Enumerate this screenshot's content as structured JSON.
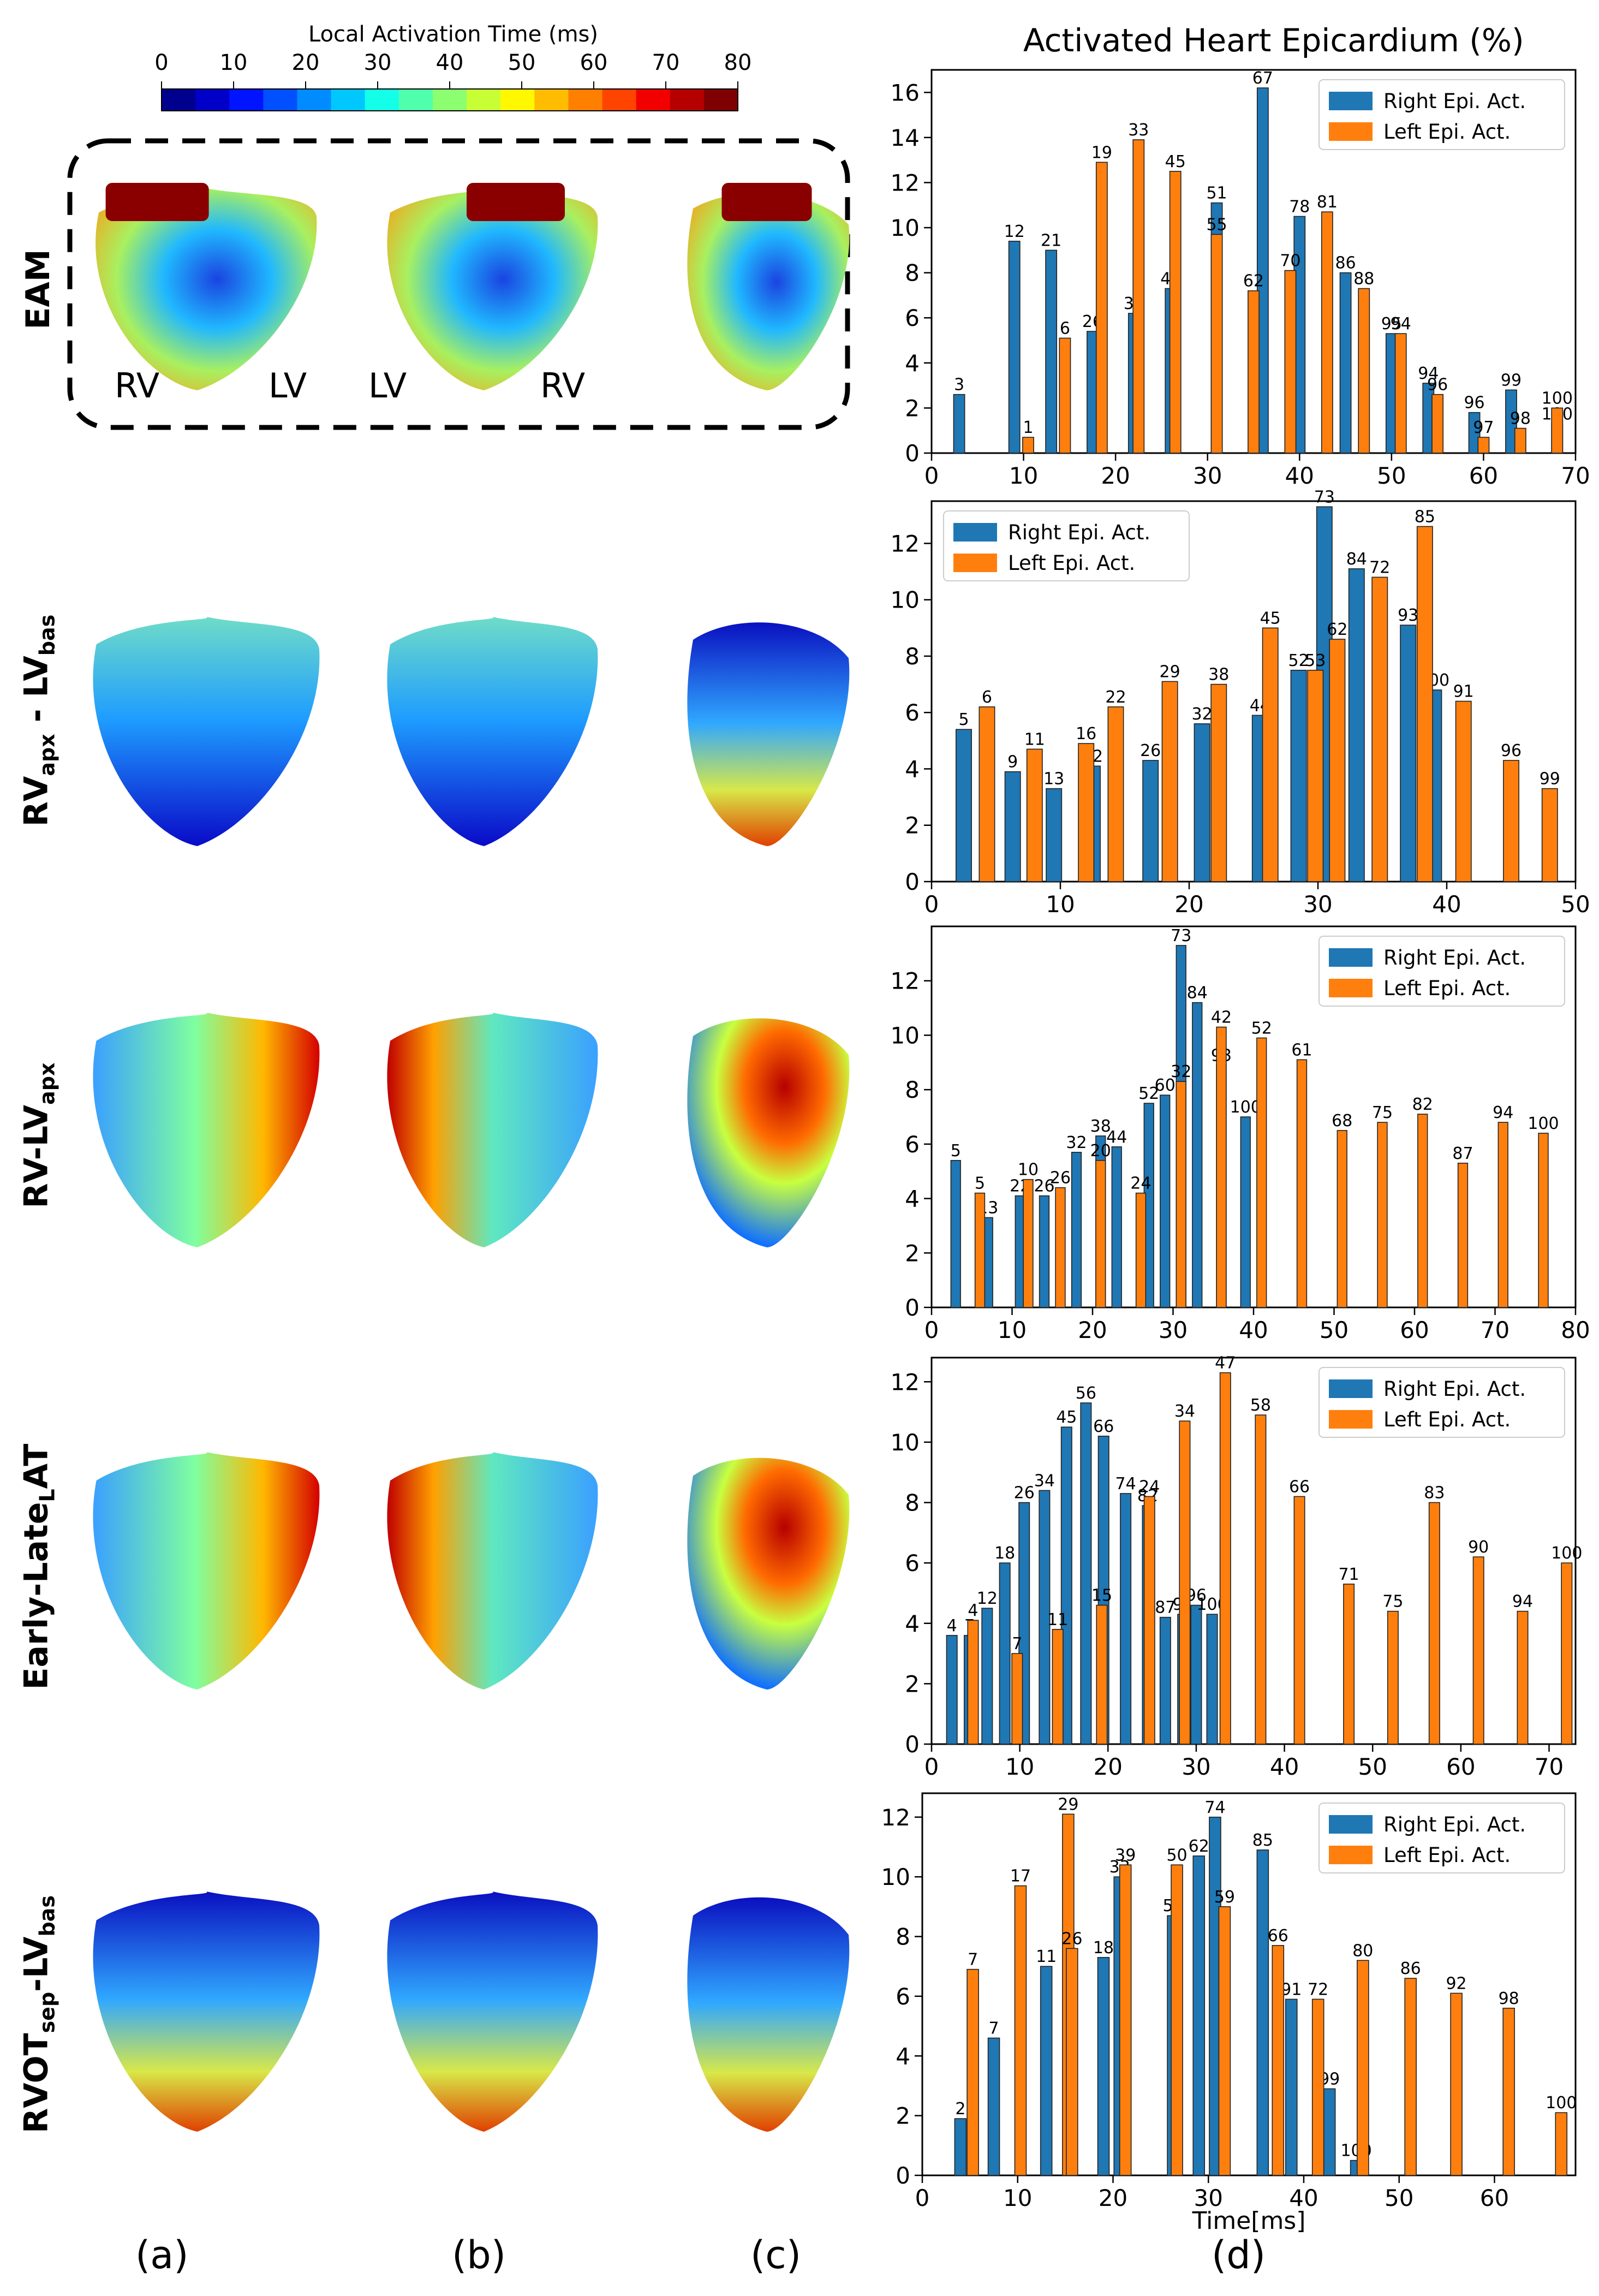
{
  "colorbar": {
    "title": "Local Activation Time (ms)",
    "ticks": [
      "0",
      "10",
      "20",
      "30",
      "40",
      "50",
      "60",
      "70",
      "80"
    ],
    "colors": [
      "#00008f",
      "#0000c8",
      "#0014ff",
      "#0050ff",
      "#008cff",
      "#00c8ff",
      "#14ffe8",
      "#50ffac",
      "#8cff70",
      "#c8ff34",
      "#fff800",
      "#ffbc00",
      "#ff8000",
      "#ff4400",
      "#f20000",
      "#b60000",
      "#7f0000"
    ]
  },
  "chart_header": "Activated Heart Epicardium (%)",
  "row_labels": {
    "r0": {
      "main": "EAM",
      "sub": "",
      "tail": "",
      "sub2": ""
    },
    "r1": {
      "main": "RV",
      "sub": "apx",
      "tail": " - LV",
      "sub2": "bas"
    },
    "r2": {
      "main": "RV-LV",
      "sub": "apx",
      "tail": "",
      "sub2": ""
    },
    "r3": {
      "main": "Early-Late",
      "sub": "L",
      "tail": "AT",
      "sub2": ""
    },
    "r4": {
      "main": "RVOT",
      "sub": "sep",
      "tail": "-LV",
      "sub2": "bas"
    }
  },
  "view_labels": {
    "rv_1": "RV",
    "lv_1": "LV",
    "lv_2": "LV",
    "rv_2": "RV"
  },
  "panel_labels": [
    "(a)",
    "(b)",
    "(c)",
    "(d)"
  ],
  "legend_right": "Right Epi. Act.",
  "legend_left": "Left Epi. Act.",
  "xlabel_last": "Time[ms]",
  "colors": {
    "right": "#1f77b4",
    "left": "#ff7f0e",
    "heart_dark": "#00008f",
    "heart_red": "#b60000"
  },
  "chart_data": [
    {
      "type": "bar",
      "title": "Activated Heart Epicardium (%)",
      "xlabel": "",
      "ylabel": "",
      "xlim": [
        0,
        70
      ],
      "ylim": [
        0,
        17
      ],
      "xticks": [
        0,
        10,
        20,
        30,
        40,
        50,
        60,
        70
      ],
      "yticks": [
        0,
        2,
        4,
        6,
        8,
        10,
        12,
        14,
        16
      ],
      "legend_position": "top-right",
      "series": [
        {
          "name": "Right Epi. Act.",
          "x": [
            3,
            9,
            13,
            17.5,
            22,
            26,
            31,
            36,
            40,
            45,
            50,
            54,
            59,
            63,
            68
          ],
          "values": [
            2.6,
            9.4,
            9,
            5.4,
            6.2,
            7.3,
            11.1,
            16.2,
            10.5,
            8,
            5.3,
            3.1,
            1.8,
            2.8,
            1.3
          ],
          "labels": [
            "3",
            "12",
            "21",
            "26",
            "33",
            "40",
            "51",
            "67",
            "78",
            "86",
            "95",
            "94",
            "96",
            "99",
            "100"
          ]
        },
        {
          "name": "Left Epi. Act.",
          "x": [
            10.5,
            14.5,
            18.5,
            22.5,
            26.5,
            31,
            35,
            39,
            43,
            47,
            51,
            55,
            60,
            64,
            68
          ],
          "values": [
            0.7,
            5.1,
            12.9,
            13.9,
            12.5,
            9.7,
            7.2,
            8.1,
            10.7,
            7.3,
            5.3,
            2.6,
            0.7,
            1.1,
            2
          ],
          "labels": [
            "1",
            "6",
            "19",
            "33",
            "45",
            "55",
            "62",
            "70",
            "81",
            "88",
            "94",
            "96",
            "97",
            "98",
            "100"
          ]
        }
      ]
    },
    {
      "type": "bar",
      "title": "",
      "xlabel": "",
      "ylabel": "",
      "xlim": [
        0,
        50
      ],
      "ylim": [
        0,
        13.5
      ],
      "xticks": [
        0,
        10,
        20,
        30,
        40,
        50
      ],
      "yticks": [
        0,
        2,
        4,
        6,
        8,
        10,
        12
      ],
      "legend_position": "top-left",
      "series": [
        {
          "name": "Right Epi. Act.",
          "x": [
            2.5,
            6.3,
            9.5,
            12.5,
            17,
            21,
            25.5,
            28.5,
            30.5,
            33,
            37,
            39
          ],
          "values": [
            5.4,
            3.9,
            3.3,
            4.1,
            4.3,
            5.6,
            5.9,
            7.5,
            13.3,
            11.1,
            9.1,
            6.8
          ],
          "labels": [
            "5",
            "9",
            "13",
            "22",
            "26",
            "32",
            "44",
            "52",
            "73",
            "84",
            "93",
            "100"
          ]
        },
        {
          "name": "Left Epi. Act.",
          "x": [
            4.3,
            8,
            12,
            14.3,
            18.5,
            22.3,
            26.3,
            29.8,
            31.5,
            34.8,
            38.3,
            41.3,
            45,
            48
          ],
          "values": [
            6.2,
            4.7,
            4.9,
            6.2,
            7.1,
            7,
            9,
            7.5,
            8.6,
            10.8,
            12.6,
            6.4,
            4.3,
            3.3
          ],
          "labels": [
            "6",
            "11",
            "16",
            "22",
            "29",
            "38",
            "45",
            "53",
            "62",
            "72",
            "85",
            "91",
            "96",
            "99"
          ]
        }
      ]
    },
    {
      "type": "bar",
      "title": "",
      "xlabel": "",
      "ylabel": "",
      "xlim": [
        0,
        80
      ],
      "ylim": [
        0,
        14
      ],
      "xticks": [
        0,
        10,
        20,
        30,
        40,
        50,
        60,
        70,
        80
      ],
      "yticks": [
        0,
        2,
        4,
        6,
        8,
        10,
        12
      ],
      "legend_position": "top-right",
      "series": [
        {
          "name": "Right Epi. Act.",
          "x": [
            3,
            7,
            11,
            14,
            18,
            21,
            23,
            27,
            29,
            31,
            33,
            36,
            39
          ],
          "values": [
            5.4,
            3.3,
            4.1,
            4.1,
            5.7,
            6.3,
            5.9,
            7.5,
            7.8,
            13.3,
            11.2,
            8.9,
            7
          ],
          "labels": [
            "5",
            "13",
            "22",
            "26",
            "32",
            "38",
            "44",
            "52",
            "60",
            "73",
            "84",
            "93",
            "100"
          ]
        },
        {
          "name": "Left Epi. Act.",
          "x": [
            6,
            12,
            16,
            21,
            26,
            31,
            36,
            41,
            46,
            51,
            56,
            61,
            66,
            71,
            76
          ],
          "values": [
            4.2,
            4.7,
            4.4,
            5.4,
            4.2,
            8.3,
            10.3,
            9.9,
            9.1,
            6.5,
            6.8,
            7.1,
            5.3,
            6.8,
            6.4
          ],
          "labels": [
            "5",
            "10",
            "26",
            "20",
            "24",
            "32",
            "42",
            "52",
            "61",
            "68",
            "75",
            "82",
            "87",
            "94",
            "100"
          ]
        }
      ]
    },
    {
      "type": "bar",
      "title": "",
      "xlabel": "",
      "ylabel": "",
      "xlim": [
        0,
        73
      ],
      "ylim": [
        0,
        12.8
      ],
      "xticks": [
        0,
        10,
        20,
        30,
        40,
        50,
        60,
        70
      ],
      "yticks": [
        0,
        2,
        4,
        6,
        8,
        10,
        12
      ],
      "legend_position": "top-right",
      "series": [
        {
          "name": "Right Epi. Act.",
          "x": [
            2.3,
            4.3,
            6.3,
            8.3,
            10.5,
            12.8,
            15.3,
            17.5,
            19.5,
            22,
            24.5,
            26.5,
            28.5,
            30,
            31.8
          ],
          "values": [
            3.6,
            3.6,
            4.5,
            6,
            8,
            8.4,
            10.5,
            11.3,
            10.2,
            8.3,
            7.9,
            4.2,
            4.3,
            4.6,
            4.3
          ],
          "labels": [
            "4",
            "7",
            "12",
            "18",
            "26",
            "34",
            "45",
            "56",
            "66",
            "74",
            "82",
            "87",
            "91",
            "96",
            "100"
          ]
        },
        {
          "name": "Left Epi. Act.",
          "x": [
            4.7,
            9.7,
            14.3,
            19.3,
            24.7,
            28.7,
            33.3,
            37.3,
            41.7,
            47.3,
            52.3,
            57,
            62,
            67,
            72
          ],
          "values": [
            4.1,
            3,
            3.8,
            4.6,
            8.2,
            10.7,
            12.3,
            10.9,
            8.2,
            5.3,
            4.4,
            8,
            6.2,
            4.4,
            6
          ],
          "labels": [
            "4",
            "7",
            "11",
            "15",
            "24",
            "34",
            "47",
            "58",
            "66",
            "71",
            "75",
            "83",
            "90",
            "94",
            "100"
          ]
        }
      ]
    },
    {
      "type": "bar",
      "title": "",
      "xlabel": "Time[ms]",
      "ylabel": "",
      "xlim": [
        0,
        68.5
      ],
      "ylim": [
        0,
        12.8
      ],
      "xticks": [
        0,
        10,
        20,
        30,
        40,
        50,
        60
      ],
      "yticks": [
        0,
        2,
        4,
        6,
        8,
        10,
        12
      ],
      "legend_position": "top-right",
      "series": [
        {
          "name": "Right Epi. Act.",
          "x": [
            4,
            7.5,
            13,
            19,
            20.7,
            26.3,
            29,
            30.7,
            35.7,
            38.7,
            42.7,
            45.5
          ],
          "values": [
            1.9,
            4.6,
            7,
            7.3,
            10,
            8.7,
            10.7,
            12,
            10.9,
            5.9,
            2.9,
            0.5
          ],
          "labels": [
            "2",
            "7",
            "11",
            "18",
            "33",
            "52",
            "62",
            "74",
            "85",
            "91",
            "99",
            "100"
          ]
        },
        {
          "name": "Left Epi. Act.",
          "x": [
            5.3,
            10.3,
            15.3,
            15.7,
            21.3,
            26.7,
            31.7,
            37.3,
            41.5,
            46.2,
            51.2,
            56,
            61.5,
            67
          ],
          "values": [
            6.9,
            9.7,
            12.1,
            7.6,
            10.4,
            10.4,
            9,
            7.7,
            5.9,
            7.2,
            6.6,
            6.1,
            5.6,
            2.1
          ],
          "labels": [
            "7",
            "17",
            "29",
            "26",
            "39",
            "50",
            "59",
            "66",
            "72",
            "80",
            "86",
            "92",
            "98",
            "100"
          ]
        }
      ]
    }
  ]
}
